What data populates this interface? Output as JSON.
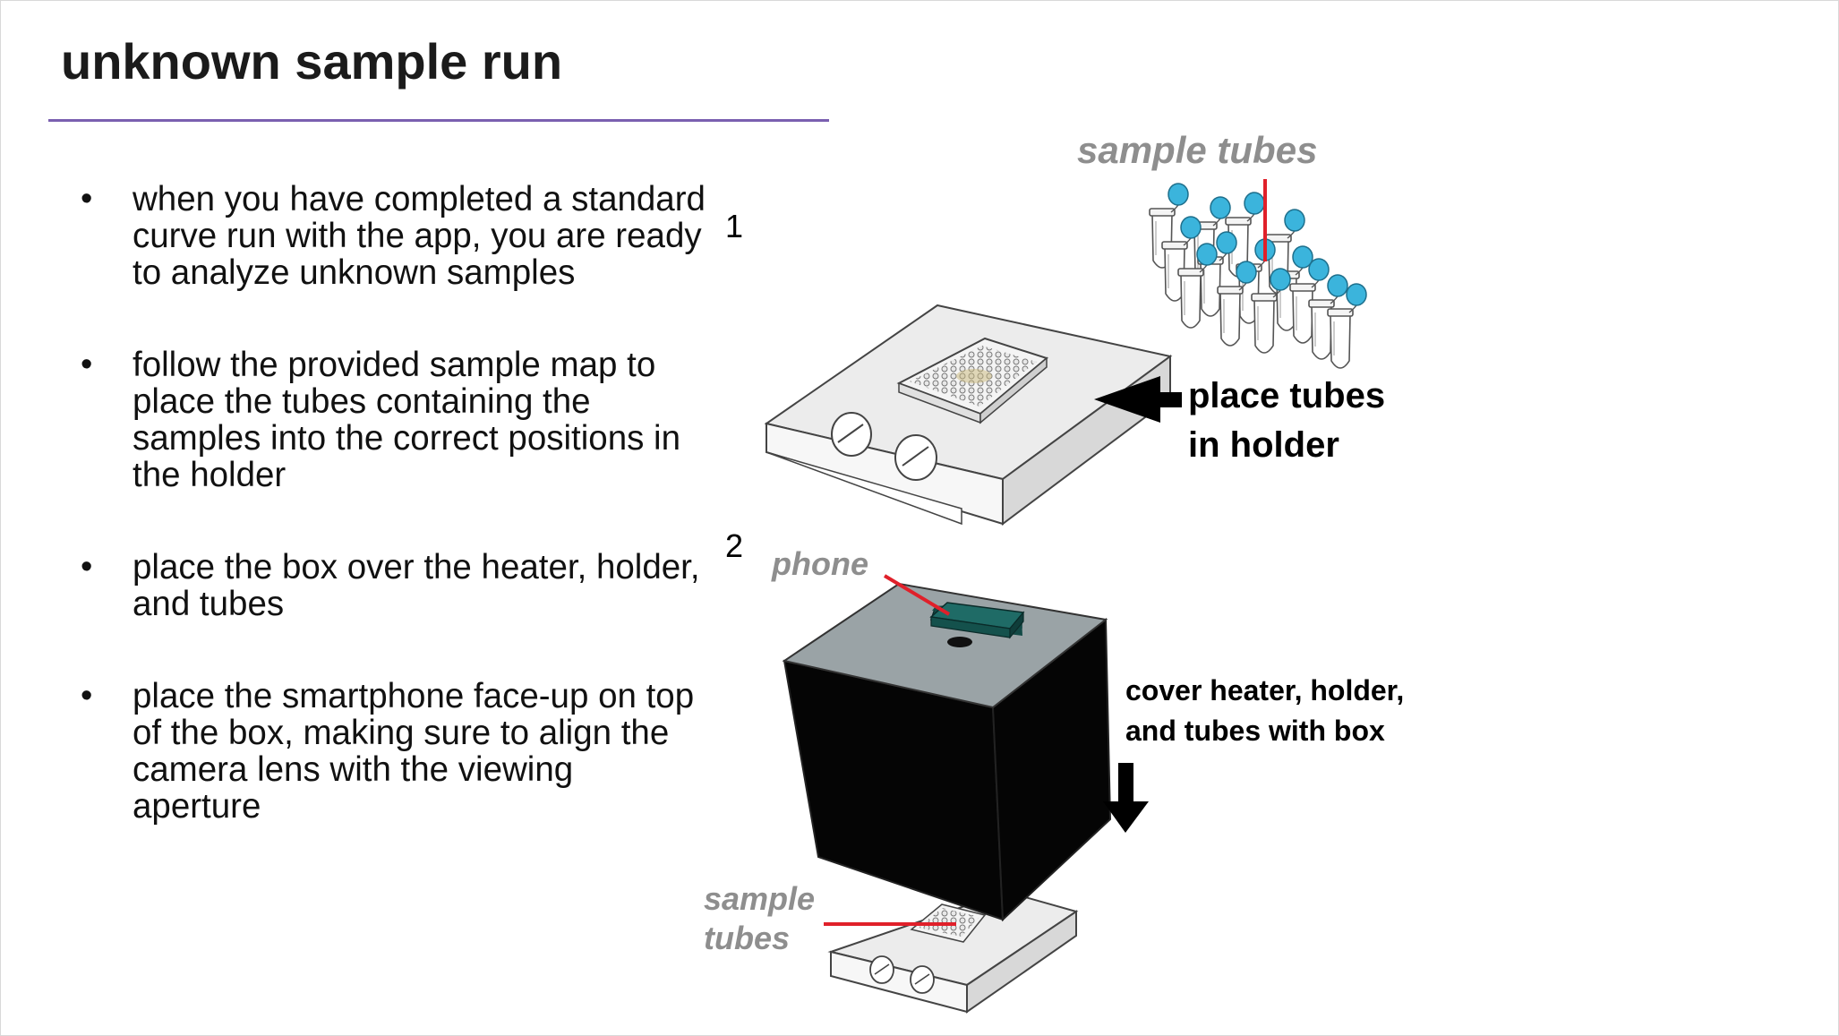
{
  "title": "unknown sample run",
  "bullets": [
    {
      "text": "when you have completed a standard curve run with the app, you are ready to analyze unknown samples"
    },
    {
      "text": "follow the provided sample map to place the tubes containing the samples into the correct positions in the holder"
    },
    {
      "text": "place the box over the heater, holder, and tubes"
    },
    {
      "text": "place the smartphone face-up on top of the box, making sure to align the camera lens with the viewing aperture"
    }
  ],
  "bullet_symbol": "•",
  "diagram": {
    "step1": "1",
    "step2": "2",
    "sample_tubes_label": "sample tubes",
    "place_tubes_line1": "place tubes",
    "place_tubes_line2": "in holder",
    "phone_label": "phone",
    "cover_line1": "cover heater, holder,",
    "cover_line2": "and tubes with box",
    "sample_tubes_bottom_line1": "sample",
    "sample_tubes_bottom_line2": "tubes"
  },
  "colors": {
    "title_rule": "#7a5fb0",
    "tube_cap": "#3bb4dc",
    "pointer_red": "#e0202a",
    "phone_green": "#1f6b66",
    "box_black": "#050505",
    "box_top": "#9aa3a6",
    "label_grey": "#8e8e8e"
  }
}
